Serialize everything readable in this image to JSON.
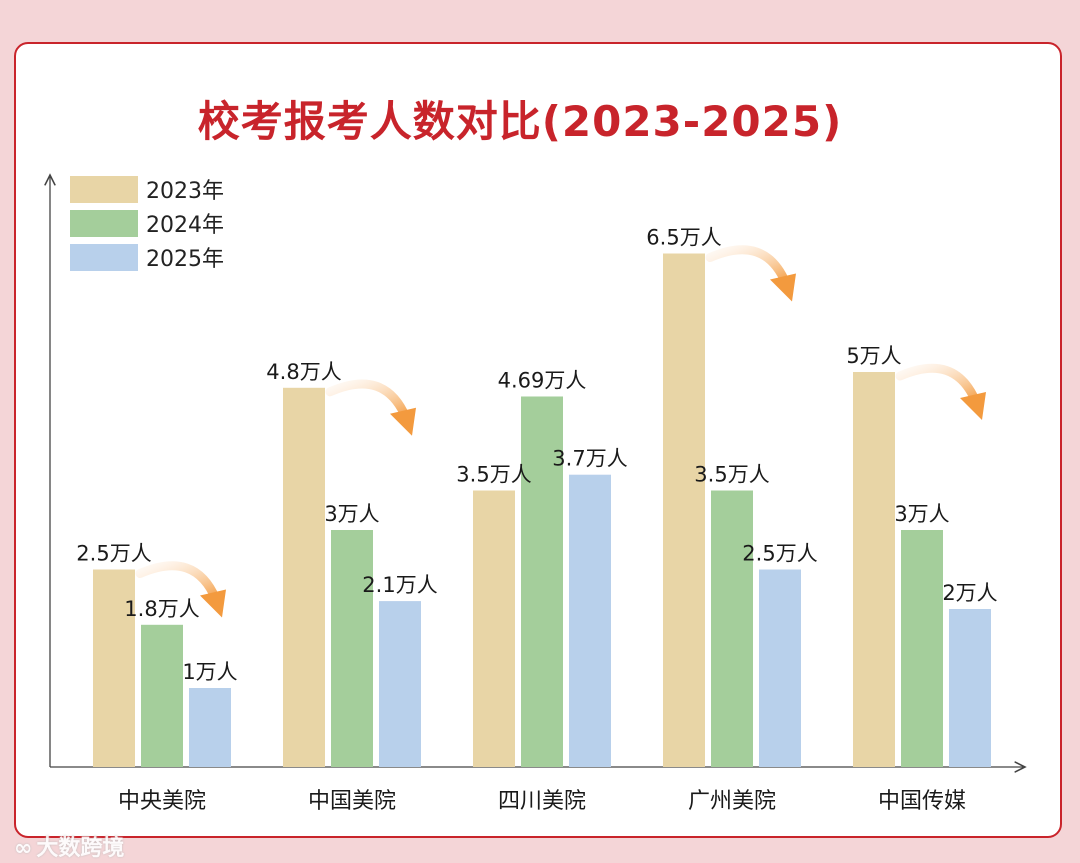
{
  "chart_data": {
    "type": "bar",
    "title": "校考报考人数对比(2023-2025)",
    "categories": [
      "中央美院",
      "中国美院",
      "四川美院",
      "广州美院",
      "中国传媒"
    ],
    "series": [
      {
        "name": "2023年",
        "color": "#e8d5a6",
        "values": [
          2.5,
          4.8,
          3.5,
          6.5,
          5
        ]
      },
      {
        "name": "2024年",
        "color": "#a4ce9b",
        "values": [
          1.8,
          3,
          4.69,
          3.5,
          3
        ]
      },
      {
        "name": "2025年",
        "color": "#b8d0eb",
        "values": [
          1,
          2.1,
          3.7,
          2.5,
          2
        ]
      }
    ],
    "data_labels": [
      [
        "2.5万人",
        "1.8万人",
        "1万人"
      ],
      [
        "4.8万人",
        "3万人",
        "2.1万人"
      ],
      [
        "3.5万人",
        "4.69万人",
        "3.7万人"
      ],
      [
        "6.5万人",
        "3.5万人",
        "2.5万人"
      ],
      [
        "5万人",
        "3万人",
        "2万人"
      ]
    ],
    "unit": "万人",
    "ylim": [
      0,
      8
    ],
    "xlabel": "",
    "ylabel": "",
    "legend_position": "top-left",
    "grid": false,
    "decreasing_arrows": [
      "中央美院",
      "中国美院",
      "广州美院",
      "中国传媒"
    ]
  },
  "watermark": {
    "icon": "∞",
    "text": "大数跨境"
  },
  "colors": {
    "title": "#c8242b",
    "border": "#c9242b",
    "background": "#f4d5d7",
    "arrow": "#f2a24e"
  }
}
